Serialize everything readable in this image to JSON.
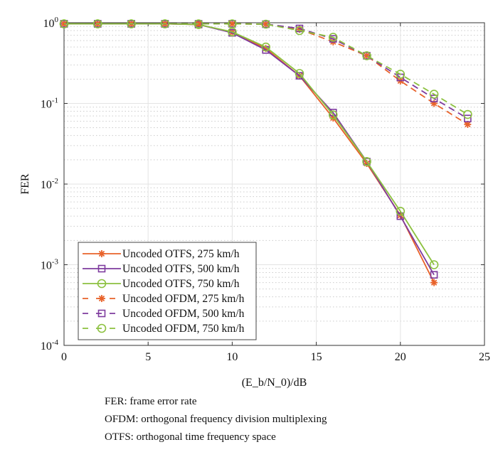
{
  "chart_data": {
    "type": "line",
    "xlabel": "(E_b/N_0)/dB",
    "ylabel": "FER",
    "xlim": [
      0,
      25
    ],
    "ylim": [
      0.0001,
      1
    ],
    "yscale": "log",
    "grid": true,
    "legend_placement": "bottom-left",
    "xticks": [
      "0",
      "5",
      "10",
      "15",
      "20",
      "25"
    ],
    "yticks": [
      {
        "base": "10",
        "exp": "0"
      },
      {
        "base": "10",
        "exp": "-1"
      },
      {
        "base": "10",
        "exp": "-2"
      },
      {
        "base": "10",
        "exp": "-3"
      },
      {
        "base": "10",
        "exp": "-4"
      }
    ],
    "series": [
      {
        "name": "Uncoded OTFS, 275 km/h",
        "color": "#e8622a",
        "dash": false,
        "marker": "asterisk",
        "x": [
          0,
          2,
          4,
          6,
          8,
          10,
          12,
          14,
          16,
          18,
          20,
          22
        ],
        "y": [
          0.97,
          0.97,
          0.97,
          0.97,
          0.95,
          0.76,
          0.48,
          0.22,
          0.066,
          0.018,
          0.0041,
          0.0006
        ]
      },
      {
        "name": "Uncoded OTFS, 500 km/h",
        "color": "#7e3b9e",
        "dash": false,
        "marker": "square",
        "x": [
          0,
          2,
          4,
          6,
          8,
          10,
          12,
          14,
          16,
          18,
          20,
          22
        ],
        "y": [
          0.97,
          0.97,
          0.97,
          0.97,
          0.95,
          0.75,
          0.46,
          0.22,
          0.077,
          0.019,
          0.004,
          0.00075
        ]
      },
      {
        "name": "Uncoded OTFS, 750 km/h",
        "color": "#8cc13f",
        "dash": false,
        "marker": "circle",
        "x": [
          0,
          2,
          4,
          6,
          8,
          10,
          12,
          14,
          16,
          18,
          20,
          22
        ],
        "y": [
          0.97,
          0.97,
          0.97,
          0.97,
          0.95,
          0.77,
          0.5,
          0.235,
          0.072,
          0.019,
          0.0046,
          0.001
        ]
      },
      {
        "name": "Uncoded OFDM, 275 km/h",
        "color": "#e8622a",
        "dash": true,
        "marker": "asterisk",
        "x": [
          0,
          2,
          4,
          6,
          8,
          10,
          12,
          14,
          16,
          18,
          20,
          22,
          24
        ],
        "y": [
          0.97,
          0.97,
          0.97,
          0.97,
          0.97,
          0.97,
          0.96,
          0.83,
          0.58,
          0.39,
          0.19,
          0.1,
          0.055
        ]
      },
      {
        "name": "Uncoded OFDM, 500 km/h",
        "color": "#7e3b9e",
        "dash": true,
        "marker": "square",
        "x": [
          0,
          2,
          4,
          6,
          8,
          10,
          12,
          14,
          16,
          18,
          20,
          22,
          24
        ],
        "y": [
          0.97,
          0.97,
          0.97,
          0.97,
          0.97,
          0.97,
          0.96,
          0.85,
          0.63,
          0.39,
          0.21,
          0.115,
          0.065
        ]
      },
      {
        "name": "Uncoded OFDM, 750 km/h",
        "color": "#8cc13f",
        "dash": true,
        "marker": "circle",
        "x": [
          0,
          2,
          4,
          6,
          8,
          10,
          12,
          14,
          16,
          18,
          20,
          22,
          24
        ],
        "y": [
          0.97,
          0.97,
          0.97,
          0.97,
          0.97,
          0.97,
          0.96,
          0.8,
          0.66,
          0.39,
          0.23,
          0.13,
          0.073
        ]
      }
    ]
  },
  "notes": [
    "FER: frame error rate",
    "OFDM: orthogonal frequency division multiplexing",
    "OTFS: orthogonal time frequency space"
  ]
}
